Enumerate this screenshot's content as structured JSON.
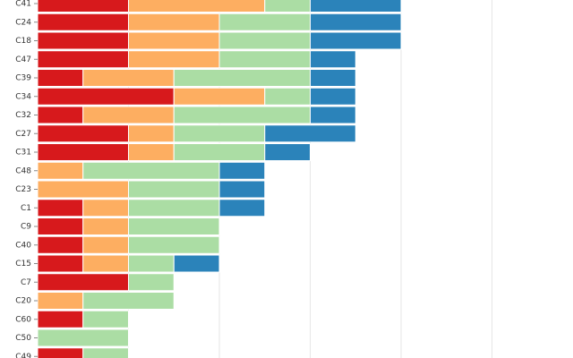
{
  "chart_data": {
    "type": "bar",
    "orientation": "horizontal",
    "stacked": true,
    "title": "",
    "xlabel": "",
    "ylabel": "",
    "xlim": [
      0,
      12
    ],
    "gridlines": [
      2,
      4,
      6,
      8,
      10,
      12
    ],
    "grid": true,
    "legend": "none",
    "categories": [
      "C41",
      "C24",
      "C18",
      "C47",
      "C39",
      "C34",
      "C32",
      "C27",
      "C31",
      "C48",
      "C23",
      "C1",
      "C9",
      "C40",
      "C15",
      "C7",
      "C20",
      "C60",
      "C50",
      "C49"
    ],
    "series": [
      {
        "color": "#d7191c",
        "values": [
          2,
          2,
          2,
          2,
          1,
          3,
          1,
          2,
          2,
          0,
          0,
          1,
          1,
          1,
          1,
          2,
          0,
          1,
          0,
          1
        ]
      },
      {
        "color": "#fdae61",
        "values": [
          3,
          2,
          2,
          2,
          2,
          2,
          2,
          1,
          1,
          1,
          2,
          1,
          1,
          1,
          1,
          0,
          1,
          0,
          0,
          0
        ]
      },
      {
        "color": "#abdda4",
        "values": [
          1,
          2,
          2,
          2,
          3,
          1,
          3,
          2,
          2,
          3,
          2,
          2,
          2,
          2,
          1,
          1,
          2,
          1,
          2,
          1
        ]
      },
      {
        "color": "#2b83ba",
        "values": [
          2,
          2,
          2,
          1,
          1,
          1,
          1,
          2,
          1,
          1,
          1,
          1,
          0,
          0,
          1,
          0,
          0,
          0,
          0,
          0
        ]
      }
    ]
  }
}
